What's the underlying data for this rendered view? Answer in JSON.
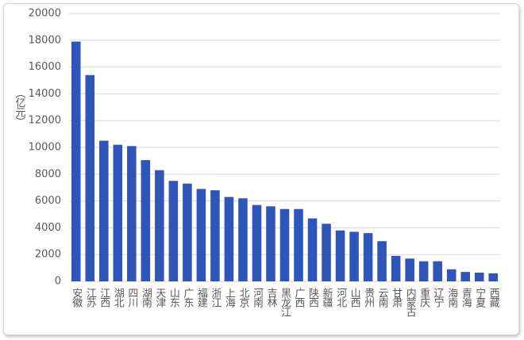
{
  "chart_data": {
    "type": "bar",
    "y_label": "（亿元）",
    "categories": [
      "安徽",
      "江苏",
      "江西",
      "湖北",
      "四川",
      "湖南",
      "天津",
      "山东",
      "广东",
      "福建",
      "浙江",
      "上海",
      "北京",
      "河南",
      "吉林",
      "黑龙江",
      "广西",
      "陕西",
      "新疆",
      "河北",
      "山西",
      "贵州",
      "云南",
      "甘肃",
      "内蒙古",
      "重庆",
      "辽宁",
      "海南",
      "青海",
      "宁夏",
      "西藏"
    ],
    "values": [
      17900,
      15400,
      10500,
      10200,
      10100,
      9050,
      8300,
      7500,
      7300,
      6900,
      6800,
      6300,
      6200,
      5700,
      5600,
      5400,
      5400,
      4700,
      4300,
      3800,
      3700,
      3600,
      3000,
      1900,
      1700,
      1500,
      1500,
      900,
      700,
      650,
      600
    ],
    "color": "#2f55b8",
    "ylim": [
      0,
      20000
    ],
    "yticks": [
      0,
      2000,
      4000,
      6000,
      8000,
      10000,
      12000,
      14000,
      16000,
      18000,
      20000
    ],
    "grid": true
  }
}
